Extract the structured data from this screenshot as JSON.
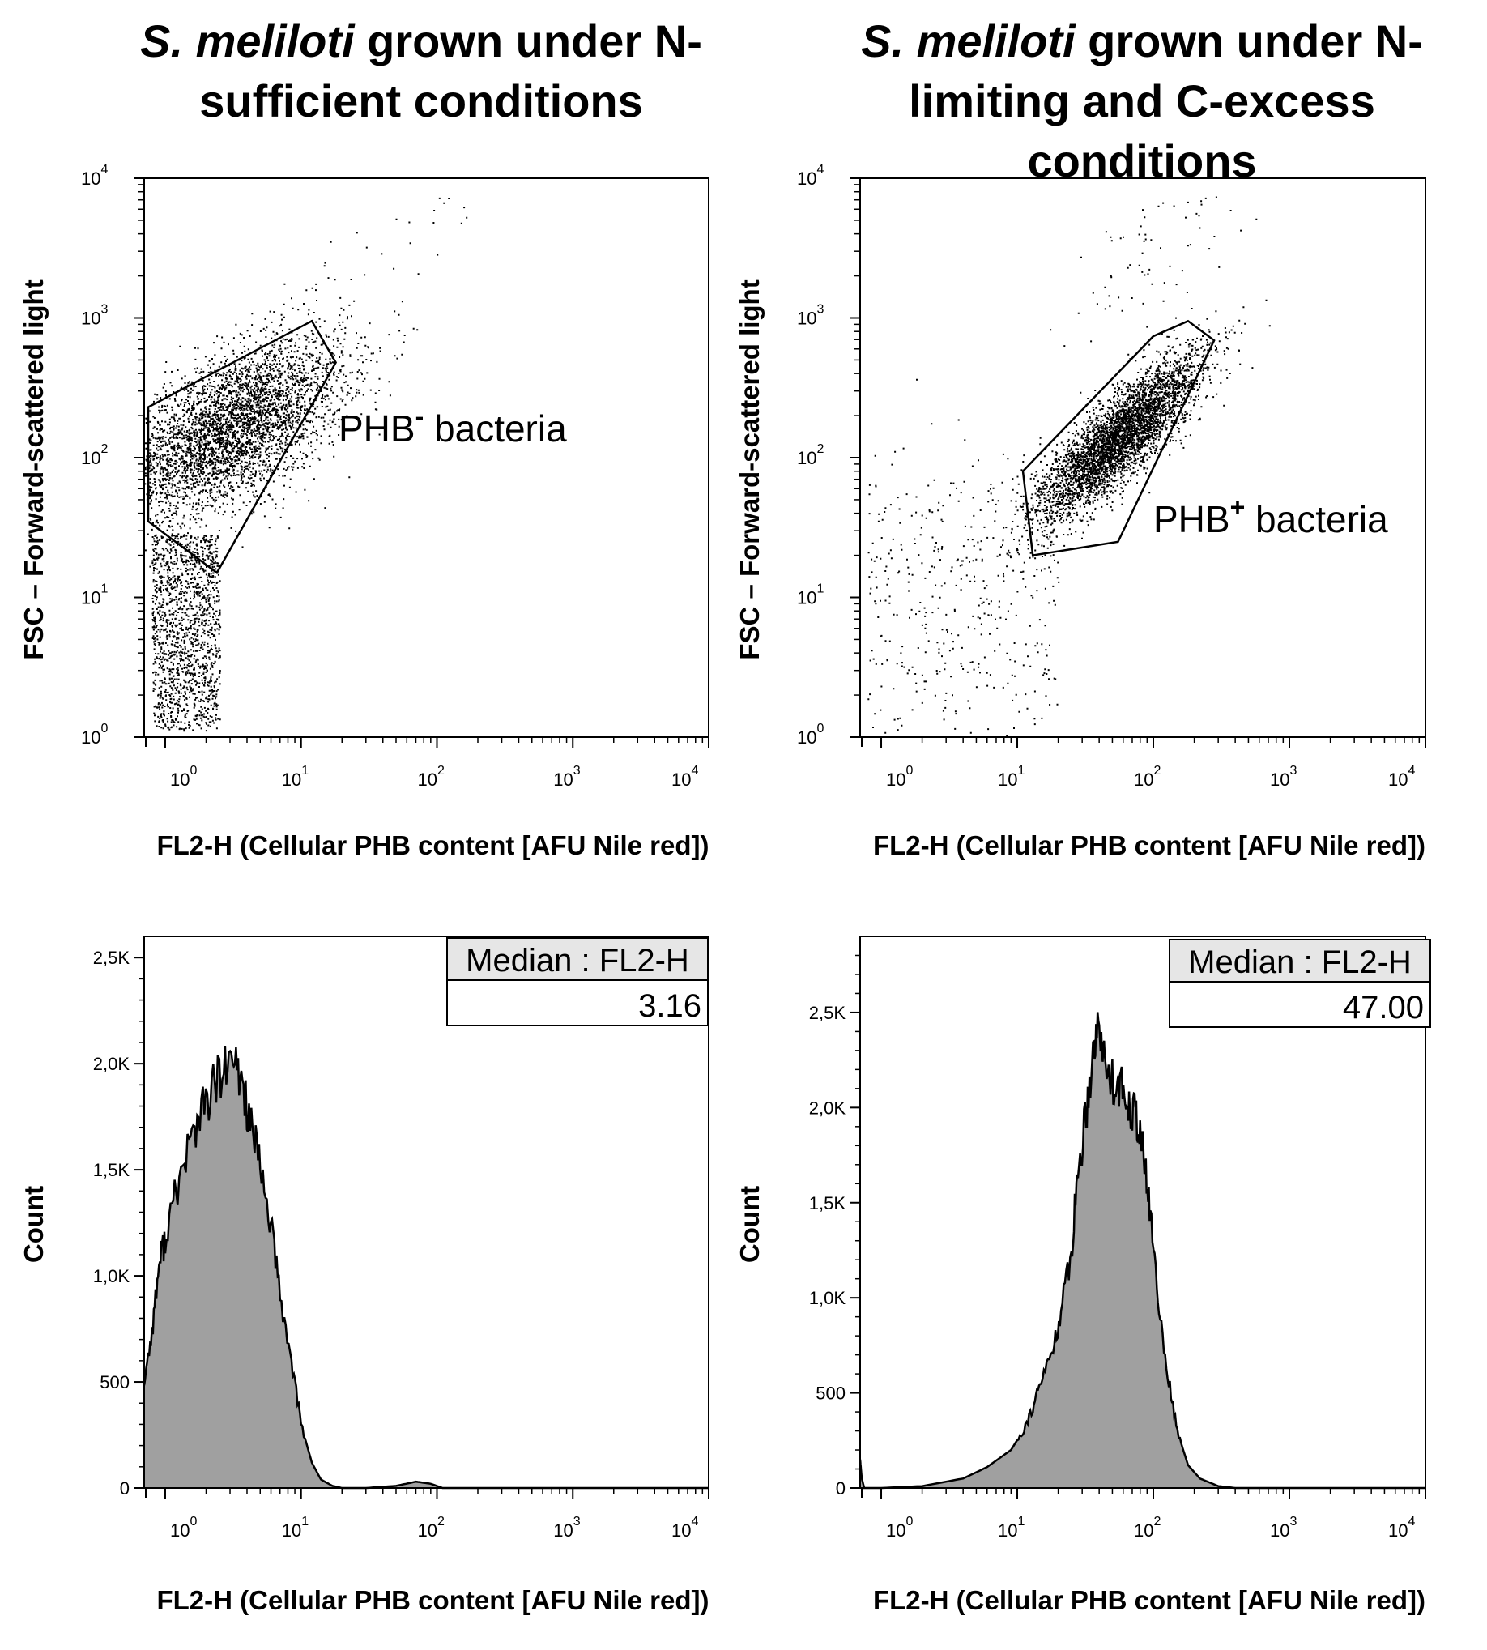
{
  "titles": {
    "left_italic": "S. meliloti",
    "left_rest": " grown under N-sufficient conditions",
    "right_italic": "S. meliloti",
    "right_rest": " grown under N-limiting and C-excess conditions"
  },
  "chart_data": [
    {
      "id": "scatter-n-sufficient",
      "type": "scatter",
      "xlabel": "FL2-H (Cellular PHB content [AFU Nile red])",
      "ylabel": "FSC – Forward-scattered light",
      "xscale": "log",
      "yscale": "log",
      "xlim": [
        0.7,
        10000
      ],
      "ylim": [
        1,
        10000
      ],
      "ticks": [
        {
          "base": "10",
          "exp": "0",
          "value": 1
        },
        {
          "base": "10",
          "exp": "1",
          "value": 10
        },
        {
          "base": "10",
          "exp": "2",
          "value": 100
        },
        {
          "base": "10",
          "exp": "3",
          "value": 1000
        },
        {
          "base": "10",
          "exp": "4",
          "value": 10000
        }
      ],
      "gate": {
        "label_main": "PHB",
        "label_sup": "-",
        "label_rest": " bacteria",
        "vertices": [
          [
            0.75,
            230
          ],
          [
            12,
            950
          ],
          [
            18,
            480
          ],
          [
            2.4,
            15
          ],
          [
            0.75,
            35
          ]
        ]
      },
      "population": {
        "center": [
          3.0,
          160
        ],
        "spread": [
          0.42,
          0.32
        ],
        "correlation": 0.6
      }
    },
    {
      "id": "scatter-n-limiting",
      "type": "scatter",
      "xlabel": "FL2-H (Cellular PHB content [AFU Nile red])",
      "ylabel": "FSC – Forward-scattered light",
      "xscale": "log",
      "yscale": "log",
      "xlim": [
        0.7,
        10000
      ],
      "ylim": [
        1,
        10000
      ],
      "ticks": [
        {
          "base": "10",
          "exp": "0",
          "value": 1
        },
        {
          "base": "10",
          "exp": "1",
          "value": 10
        },
        {
          "base": "10",
          "exp": "2",
          "value": 100
        },
        {
          "base": "10",
          "exp": "3",
          "value": 1000
        },
        {
          "base": "10",
          "exp": "4",
          "value": 10000
        }
      ],
      "gate": {
        "label_main": "PHB",
        "label_sup": "+",
        "label_rest": " bacteria",
        "vertices": [
          [
            11,
            80
          ],
          [
            100,
            740
          ],
          [
            180,
            950
          ],
          [
            280,
            690
          ],
          [
            55,
            25
          ],
          [
            13,
            20
          ]
        ]
      },
      "population": {
        "center": [
          55,
          140
        ],
        "spread": [
          0.3,
          0.3
        ],
        "correlation": 0.85
      }
    },
    {
      "id": "histogram-n-sufficient",
      "type": "area",
      "xlabel": "FL2-H (Cellular PHB content [AFU Nile red])",
      "ylabel": "Count",
      "xscale": "log",
      "xlim": [
        0.7,
        10000
      ],
      "ylim": [
        0,
        2600
      ],
      "yticks": [
        0,
        500,
        1000,
        1500,
        2000,
        2500
      ],
      "ytick_labels": [
        "0",
        "500",
        "1,0K",
        "1,5K",
        "2,0K",
        "2,5K"
      ],
      "ticks": [
        {
          "base": "10",
          "exp": "0",
          "value": 1
        },
        {
          "base": "10",
          "exp": "1",
          "value": 10
        },
        {
          "base": "10",
          "exp": "2",
          "value": 100
        },
        {
          "base": "10",
          "exp": "3",
          "value": 1000
        },
        {
          "base": "10",
          "exp": "4",
          "value": 10000
        }
      ],
      "x": [
        0.7,
        0.8,
        0.9,
        1.0,
        1.2,
        1.5,
        1.8,
        2.2,
        2.7,
        3.2,
        3.7,
        4.3,
        5.0,
        6.0,
        7.0,
        8.5,
        10,
        12,
        14,
        17,
        20,
        30,
        50,
        70,
        90,
        110,
        200,
        1000,
        10000
      ],
      "y": [
        500,
        740,
        1050,
        1180,
        1390,
        1620,
        1750,
        1870,
        1960,
        2000,
        1910,
        1700,
        1500,
        1250,
        900,
        600,
        300,
        120,
        40,
        10,
        0,
        0,
        10,
        30,
        20,
        0,
        0,
        0,
        0
      ],
      "stats": {
        "header": "Median : FL2-H",
        "value": "3.16"
      }
    },
    {
      "id": "histogram-n-limiting",
      "type": "area",
      "xlabel": "FL2-H (Cellular PHB content [AFU Nile red])",
      "ylabel": "Count",
      "xscale": "log",
      "xlim": [
        0.7,
        10000
      ],
      "ylim": [
        0,
        2900
      ],
      "yticks": [
        0,
        500,
        1000,
        1500,
        2000,
        2500
      ],
      "ytick_labels": [
        "0",
        "500",
        "1,0K",
        "1,5K",
        "2,0K",
        "2,5K"
      ],
      "ticks": [
        {
          "base": "10",
          "exp": "0",
          "value": 1
        },
        {
          "base": "10",
          "exp": "1",
          "value": 10
        },
        {
          "base": "10",
          "exp": "2",
          "value": 100
        },
        {
          "base": "10",
          "exp": "3",
          "value": 1000
        },
        {
          "base": "10",
          "exp": "4",
          "value": 10000
        }
      ],
      "x": [
        0.7,
        0.72,
        0.75,
        1,
        2,
        4,
        6,
        9,
        11,
        13,
        15,
        18,
        21,
        25,
        28,
        32,
        36,
        40,
        44,
        50,
        56,
        63,
        70,
        78,
        86,
        95,
        110,
        130,
        150,
        180,
        220,
        300,
        400,
        10000
      ],
      "y": [
        150,
        50,
        0,
        0,
        10,
        50,
        110,
        200,
        300,
        420,
        560,
        720,
        920,
        1250,
        1660,
        1980,
        2300,
        2450,
        2230,
        2150,
        2120,
        2050,
        2000,
        1930,
        1700,
        1450,
        950,
        560,
        300,
        120,
        50,
        10,
        0,
        0
      ],
      "stats": {
        "header": "Median : FL2-H",
        "value": "47.00"
      }
    }
  ]
}
